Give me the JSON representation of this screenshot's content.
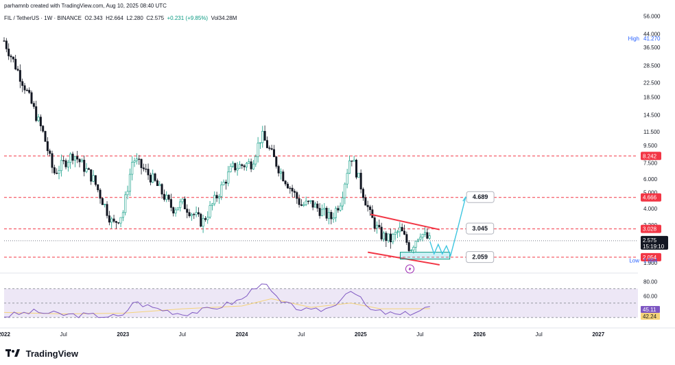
{
  "header": {
    "created_by": "parhamnb created with TradingView.com, Aug 10, 2025 08:40 UTC",
    "symbol": "FIL / TetherUS · 1W · BINANCE",
    "open": "O2.343",
    "high": "H2.664",
    "low": "L2.280",
    "close": "C2.575",
    "change": "+0.231 (+9.85%)",
    "volume": "Vol34.28M"
  },
  "brand": {
    "name": "TradingView"
  },
  "colors": {
    "up": "#089981",
    "down": "#131722",
    "resistance_line": "#f23645",
    "rsi_line": "#7e57c2",
    "rsi_ma": "#f5d37a",
    "rsi_band": "#ede7f6",
    "projection": "#3ec6e0"
  },
  "chart_data": [
    {
      "type": "candlestick",
      "scale": "log",
      "y_ticks": [
        "56.000",
        "44.000",
        "36.500",
        "28.500",
        "22.500",
        "18.500",
        "14.500",
        "11.500",
        "9.500",
        "7.500",
        "6.000",
        "5.000",
        "4.000",
        "3.200",
        "2.500",
        "1.900"
      ],
      "x_ticks": [
        "2022",
        "Jul",
        "2023",
        "Jul",
        "2024",
        "Jul",
        "2025",
        "Jul",
        "2026",
        "Jul",
        "2027"
      ],
      "ylim": [
        1.7,
        58
      ],
      "xlim": [
        "2022-01",
        "2027-05"
      ],
      "high_label": {
        "text": "High",
        "value": "41.270"
      },
      "low_label": {
        "text": "Low",
        "value": "1.964"
      },
      "price_label": {
        "value": "2.575",
        "countdown": "15:19:10"
      },
      "horizontal_levels": [
        {
          "value": 8.242,
          "label": "8.242"
        },
        {
          "value": 4.666,
          "label": "4.666"
        },
        {
          "value": 3.028,
          "label": "3.028"
        },
        {
          "value": 2.054,
          "label": "2.054"
        }
      ],
      "targets": [
        {
          "label": "4.689",
          "value": 4.689
        },
        {
          "label": "3.045",
          "value": 3.045
        },
        {
          "label": "2.059",
          "value": 2.059
        }
      ],
      "series": [
        {
          "name": "price",
          "x": [
            "2022-01",
            "2022-03",
            "2022-05",
            "2022-06",
            "2022-08",
            "2022-10",
            "2022-12",
            "2023-01",
            "2023-02",
            "2023-04",
            "2023-06",
            "2023-07",
            "2023-09",
            "2023-10",
            "2023-12",
            "2024-02",
            "2024-03",
            "2024-05",
            "2024-07",
            "2024-08",
            "2024-10",
            "2024-11",
            "2024-12",
            "2025-02",
            "2025-03",
            "2025-04",
            "2025-05",
            "2025-06",
            "2025-07",
            "2025-08"
          ],
          "values": [
            40,
            22,
            11,
            6.5,
            8.5,
            6.0,
            3.2,
            3.8,
            8.0,
            6.0,
            4.0,
            4.3,
            3.3,
            4.2,
            7.0,
            7.5,
            11.0,
            6.5,
            4.2,
            4.3,
            3.5,
            4.5,
            8.5,
            3.6,
            2.8,
            2.6,
            3.0,
            2.3,
            2.9,
            2.575
          ]
        }
      ]
    },
    {
      "type": "line",
      "name": "RSI",
      "y_ticks": [
        "80.00",
        "60.00"
      ],
      "ylim": [
        25,
        85
      ],
      "last_values": [
        {
          "value": "45.11"
        },
        {
          "value": "42.24"
        }
      ],
      "series": [
        {
          "name": "rsi",
          "x": [
            "2022-01",
            "2022-04",
            "2022-07",
            "2022-10",
            "2023-01",
            "2023-02",
            "2023-04",
            "2023-07",
            "2023-10",
            "2024-01",
            "2024-03",
            "2024-05",
            "2024-08",
            "2024-10",
            "2024-12",
            "2025-02",
            "2025-05",
            "2025-07",
            "2025-08"
          ],
          "values": [
            32,
            38,
            34,
            33,
            31,
            52,
            44,
            35,
            42,
            55,
            80,
            50,
            38,
            44,
            70,
            40,
            33,
            40,
            45.11
          ]
        },
        {
          "name": "rsi_ma",
          "x": [
            "2022-01",
            "2022-07",
            "2023-01",
            "2023-07",
            "2024-01",
            "2024-04",
            "2024-08",
            "2024-12",
            "2025-03",
            "2025-08"
          ],
          "values": [
            37,
            35,
            36,
            42,
            46,
            56,
            44,
            50,
            42,
            42.24
          ]
        }
      ]
    }
  ]
}
